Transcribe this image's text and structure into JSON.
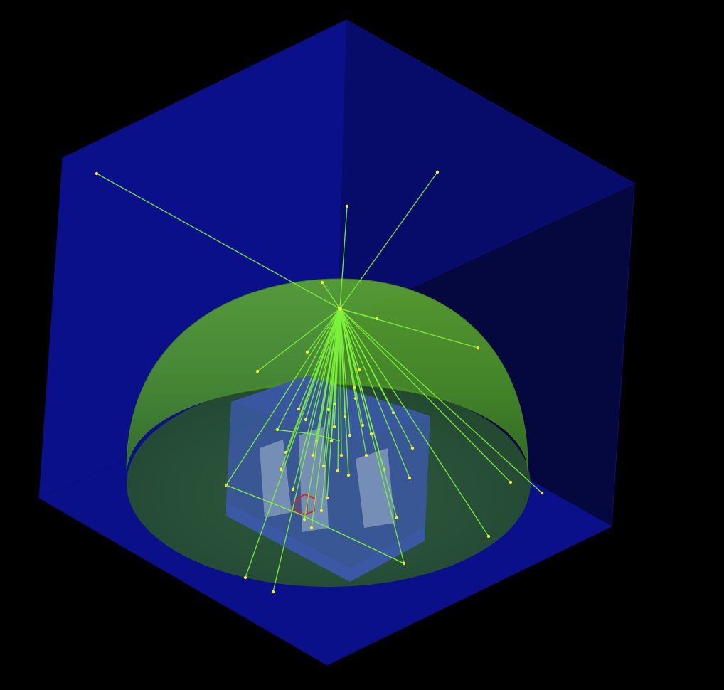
{
  "scene": {
    "background_color": "#000000",
    "world_box": {
      "front_face_color": "#0a0f8a",
      "top_face_color": "#070b6a",
      "right_face_color": "#05073f",
      "edge_color": "#0b0f7a"
    },
    "dome": {
      "shell_color": "#5fae2a",
      "shell_dark_color": "#3e7f1d",
      "floor_color": "#2f5e30"
    },
    "detector_block": {
      "outer_color": "#3b58a5",
      "inner_color": "#6f8bb8",
      "pillar_color": "#8aa0c2"
    },
    "hit_marker_color": "#cc2a2a",
    "tracks": {
      "line_color": "#7cf23a",
      "point_color": "#f3ee2a",
      "count": 48
    }
  }
}
